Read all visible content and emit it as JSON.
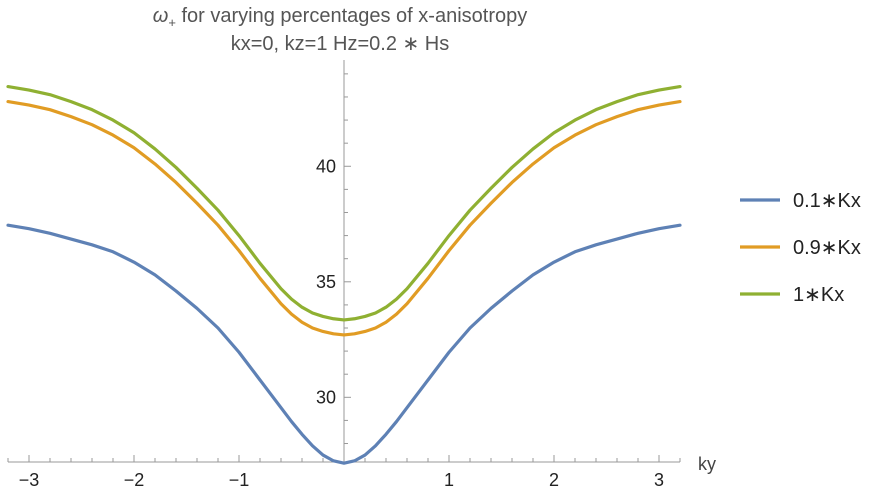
{
  "chart_data": {
    "type": "line",
    "title_symbol": "ω",
    "title_subscript": "+",
    "title_rest": " for varying percentages of x-anisotropy",
    "subtitle": "kx=0, kz=1 Hz=0.2 ∗ Hs",
    "xlabel": "ky",
    "ylabel": "",
    "xlim": [
      -3.2,
      3.2
    ],
    "ylim": [
      27.2,
      44.6
    ],
    "x_ticks": [
      -3,
      -2,
      -1,
      1,
      2,
      3
    ],
    "x_tick_labels": [
      "−3",
      "−2",
      "−1",
      "1",
      "2",
      "3"
    ],
    "y_ticks": [
      30,
      35,
      40
    ],
    "y_tick_labels": [
      "30",
      "35",
      "40"
    ],
    "x_minor_step": 0.2,
    "y_minor_step": 1,
    "grid": false,
    "legend_position": "right",
    "x": [
      -3.2,
      -3.0,
      -2.8,
      -2.6,
      -2.4,
      -2.2,
      -2.0,
      -1.8,
      -1.6,
      -1.4,
      -1.2,
      -1.0,
      -0.8,
      -0.6,
      -0.5,
      -0.4,
      -0.3,
      -0.2,
      -0.1,
      0.0,
      0.1,
      0.2,
      0.3,
      0.4,
      0.5,
      0.6,
      0.8,
      1.0,
      1.2,
      1.4,
      1.6,
      1.8,
      2.0,
      2.2,
      2.4,
      2.6,
      2.8,
      3.0,
      3.2
    ],
    "series": [
      {
        "name": "0.1∗Kx",
        "color": "#5e81b5",
        "values": [
          37.45,
          37.3,
          37.1,
          36.85,
          36.6,
          36.3,
          35.85,
          35.3,
          34.6,
          33.85,
          33.0,
          31.95,
          30.75,
          29.55,
          28.95,
          28.4,
          27.9,
          27.5,
          27.25,
          27.15,
          27.25,
          27.5,
          27.9,
          28.4,
          28.95,
          29.55,
          30.75,
          31.95,
          33.0,
          33.85,
          34.6,
          35.3,
          35.85,
          36.3,
          36.6,
          36.85,
          37.1,
          37.3,
          37.45
        ]
      },
      {
        "name": "0.9∗Kx",
        "color": "#e19c24",
        "values": [
          42.8,
          42.65,
          42.45,
          42.15,
          41.8,
          41.35,
          40.8,
          40.1,
          39.3,
          38.4,
          37.45,
          36.35,
          35.15,
          34.05,
          33.6,
          33.25,
          33.0,
          32.85,
          32.75,
          32.7,
          32.75,
          32.85,
          33.0,
          33.25,
          33.6,
          34.05,
          35.15,
          36.35,
          37.45,
          38.4,
          39.3,
          40.1,
          40.8,
          41.35,
          41.8,
          42.15,
          42.45,
          42.65,
          42.8
        ]
      },
      {
        "name": "1∗Kx",
        "color": "#8fb032",
        "values": [
          43.45,
          43.3,
          43.1,
          42.8,
          42.45,
          42.0,
          41.45,
          40.75,
          39.95,
          39.05,
          38.1,
          37.0,
          35.8,
          34.7,
          34.25,
          33.9,
          33.65,
          33.5,
          33.4,
          33.35,
          33.4,
          33.5,
          33.65,
          33.9,
          34.25,
          34.7,
          35.8,
          37.0,
          38.1,
          39.05,
          39.95,
          40.75,
          41.45,
          42.0,
          42.45,
          42.8,
          43.1,
          43.3,
          43.45
        ]
      }
    ]
  }
}
